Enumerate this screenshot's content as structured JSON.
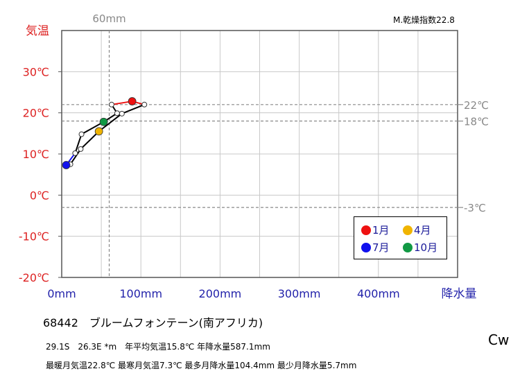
{
  "header": {
    "aridity_index": "M.乾燥指数22.8",
    "climate_class": "Cw"
  },
  "station": {
    "title": "68442　ブルームフォンテーン(南アフリカ)",
    "line1": "29.1S　26.3E *m　年平均気温15.8℃ 年降水量587.1mm",
    "line2": "最暖月気温22.8℃ 最寒月気温7.3℃ 最多月降水量104.4mm 最少月降水量5.7mm"
  },
  "legend": {
    "jan": "1月",
    "apr": "4月",
    "jul": "7月",
    "oct": "10月"
  },
  "chart_data": {
    "type": "line",
    "ylabel": "気温",
    "xlabel": "降水量",
    "xlim": [
      0,
      500
    ],
    "ylim": [
      -20,
      40
    ],
    "x_ticks": [
      "0mm",
      "100mm",
      "200mm",
      "300mm",
      "400mm"
    ],
    "y_ticks": [
      "-20℃",
      "-10℃",
      "0℃",
      "10℃",
      "20℃",
      "30℃"
    ],
    "reference_lines": {
      "x": [
        {
          "value": 60,
          "label": "60mm"
        }
      ],
      "y": [
        {
          "value": 22,
          "label": "22℃"
        },
        {
          "value": 18,
          "label": "18℃"
        },
        {
          "value": -3,
          "label": "-3℃"
        }
      ]
    },
    "months": [
      {
        "month": 1,
        "precip": 89,
        "temp": 22.8
      },
      {
        "month": 2,
        "precip": 104.4,
        "temp": 22.0
      },
      {
        "month": 3,
        "precip": 76,
        "temp": 19.8
      },
      {
        "month": 4,
        "precip": 47,
        "temp": 15.5
      },
      {
        "month": 5,
        "precip": 24,
        "temp": 11.2
      },
      {
        "month": 6,
        "precip": 11,
        "temp": 7.5
      },
      {
        "month": 7,
        "precip": 5.7,
        "temp": 7.3
      },
      {
        "month": 8,
        "precip": 17,
        "temp": 10.2
      },
      {
        "month": 9,
        "precip": 25,
        "temp": 14.8
      },
      {
        "month": 10,
        "precip": 53,
        "temp": 17.8
      },
      {
        "month": 11,
        "precip": 70,
        "temp": 19.9
      },
      {
        "month": 12,
        "precip": 63,
        "temp": 22.0
      }
    ],
    "highlight": {
      "1": "#ee1111",
      "4": "#f0b400",
      "7": "#1111ee",
      "10": "#119944"
    },
    "colors": {
      "axis_label_red": "#dd2222",
      "axis_label_blue": "#2222aa",
      "ref_gray": "#888888",
      "grid": "#c8c8c8",
      "summer_segment": "#ee1111",
      "winter_segment": "#1111ee"
    }
  }
}
